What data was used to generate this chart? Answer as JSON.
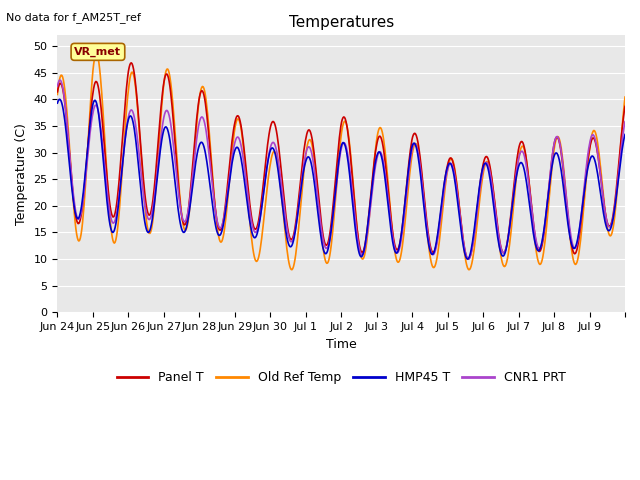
{
  "title": "Temperatures",
  "xlabel": "Time",
  "ylabel": "Temperature (C)",
  "note": "No data for f_AM25T_ref",
  "legend_label": "VR_met",
  "ylim": [
    0,
    52
  ],
  "yticks": [
    0,
    5,
    10,
    15,
    20,
    25,
    30,
    35,
    40,
    45,
    50
  ],
  "background_color": "#e8e8e8",
  "series": {
    "Panel T": {
      "color": "#cc0000",
      "lw": 1.2
    },
    "Old Ref Temp": {
      "color": "#ff8800",
      "lw": 1.2
    },
    "HMP45 T": {
      "color": "#0000cc",
      "lw": 1.2
    },
    "CNR1 PRT": {
      "color": "#aa44cc",
      "lw": 1.2
    }
  },
  "x_tick_positions": [
    0,
    1,
    2,
    3,
    4,
    5,
    6,
    7,
    8,
    9,
    10,
    11,
    12,
    13,
    14,
    15,
    16
  ],
  "x_tick_labels": [
    "Jun 24",
    "Jun 25",
    "Jun 26",
    "Jun 27",
    "Jun 28",
    "Jun 29",
    "Jun 30",
    "Jul 1",
    "Jul 2",
    "Jul 3",
    "Jul 4",
    "Jul 5",
    "Jul 6",
    "Jul 7",
    "Jul 8",
    "Jul 9",
    ""
  ]
}
